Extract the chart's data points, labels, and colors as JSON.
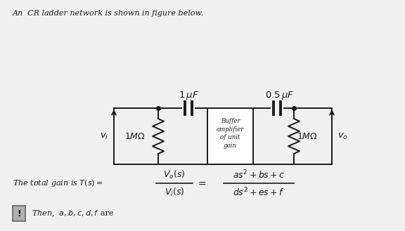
{
  "title": "An  CR ladder network is shown in figure below.",
  "bg_color": "#f0f0f0",
  "text_color": "#1a1a1a",
  "circuit": {
    "cap1_label": "$1\\,\\mu F$",
    "cap2_label": "$0.5\\,\\mu F$",
    "r1_label": "$1M\\Omega$",
    "r2_label": "$1M\\Omega$",
    "vi_label": "$v_i$",
    "vo_label": "$v_o$",
    "buffer_label": "Buffer\namplifier\nof unit\ngain"
  },
  "bottom_text_italic": "Then,  $a, b, c, d, f$",
  "bottom_text_normal": "  are"
}
